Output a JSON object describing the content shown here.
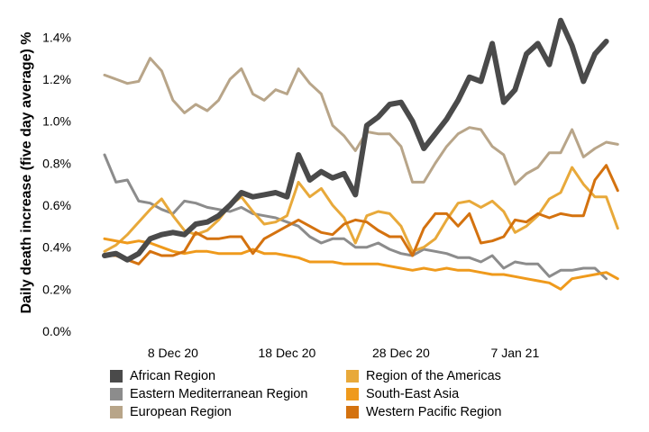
{
  "chart_data": {
    "type": "line",
    "title": "",
    "xlabel": "",
    "ylabel": "Daily death increase (five day average) %",
    "ylim": [
      0,
      1.5
    ],
    "y_ticks": [
      0.0,
      0.2,
      0.4,
      0.6,
      0.8,
      1.0,
      1.2,
      1.4
    ],
    "y_tick_labels": [
      "0.0%",
      "0.2%",
      "0.4%",
      "0.6%",
      "0.8%",
      "1.0%",
      "1.2%",
      "1.4%"
    ],
    "x_tick_labels": [
      {
        "label": "8 Dec 20",
        "day": 6
      },
      {
        "label": "18 Dec 20",
        "day": 16
      },
      {
        "label": "28 Dec 20",
        "day": 26
      },
      {
        "label": "7 Jan 21",
        "day": 36
      }
    ],
    "x_range": [
      0,
      46
    ],
    "grid": false,
    "legend_position": "bottom",
    "series": [
      {
        "name": "African Region",
        "color": "#4a4a4a",
        "width": 6,
        "values": [
          0.36,
          0.37,
          0.34,
          0.37,
          0.44,
          0.46,
          0.47,
          0.46,
          0.51,
          0.52,
          0.55,
          0.6,
          0.66,
          0.64,
          0.65,
          0.66,
          0.64,
          0.84,
          0.72,
          0.76,
          0.73,
          0.75,
          0.65,
          0.98,
          1.02,
          1.08,
          1.09,
          1.0,
          0.87,
          0.94,
          1.01,
          1.1,
          1.21,
          1.19,
          1.37,
          1.09,
          1.15,
          1.32,
          1.37,
          1.27,
          1.48,
          1.36,
          1.19,
          1.32,
          1.38
        ]
      },
      {
        "name": "Eastern Mediterranean Region",
        "color": "#8c8c8c",
        "width": 3,
        "values": [
          0.84,
          0.71,
          0.72,
          0.62,
          0.61,
          0.58,
          0.56,
          0.62,
          0.61,
          0.59,
          0.58,
          0.57,
          0.59,
          0.56,
          0.55,
          0.54,
          0.52,
          0.5,
          0.45,
          0.42,
          0.44,
          0.44,
          0.4,
          0.4,
          0.42,
          0.39,
          0.37,
          0.36,
          0.39,
          0.38,
          0.37,
          0.35,
          0.35,
          0.33,
          0.36,
          0.3,
          0.33,
          0.32,
          0.32,
          0.26,
          0.29,
          0.29,
          0.3,
          0.3,
          0.25
        ]
      },
      {
        "name": "European Region",
        "color": "#b8a589",
        "width": 3,
        "values": [
          1.22,
          1.2,
          1.18,
          1.19,
          1.3,
          1.24,
          1.1,
          1.04,
          1.08,
          1.05,
          1.1,
          1.2,
          1.25,
          1.13,
          1.1,
          1.15,
          1.13,
          1.25,
          1.18,
          1.13,
          0.98,
          0.93,
          0.86,
          0.95,
          0.94,
          0.94,
          0.88,
          0.71,
          0.71,
          0.8,
          0.88,
          0.94,
          0.97,
          0.96,
          0.88,
          0.84,
          0.7,
          0.75,
          0.78,
          0.85,
          0.85,
          0.96,
          0.83,
          0.87,
          0.9,
          0.89
        ]
      },
      {
        "name": "Region of the Americas",
        "color": "#e8a93a",
        "width": 3,
        "values": [
          0.38,
          0.41,
          0.46,
          0.52,
          0.58,
          0.63,
          0.55,
          0.48,
          0.46,
          0.48,
          0.53,
          0.6,
          0.64,
          0.57,
          0.51,
          0.52,
          0.55,
          0.71,
          0.64,
          0.68,
          0.6,
          0.54,
          0.42,
          0.55,
          0.57,
          0.56,
          0.5,
          0.38,
          0.4,
          0.44,
          0.53,
          0.61,
          0.62,
          0.59,
          0.62,
          0.57,
          0.47,
          0.5,
          0.55,
          0.63,
          0.66,
          0.78,
          0.7,
          0.64,
          0.64,
          0.49
        ]
      },
      {
        "name": "South-East Asia",
        "color": "#ef9a1c",
        "width": 3,
        "values": [
          0.44,
          0.43,
          0.42,
          0.43,
          0.42,
          0.4,
          0.38,
          0.37,
          0.38,
          0.38,
          0.37,
          0.37,
          0.37,
          0.39,
          0.37,
          0.37,
          0.36,
          0.35,
          0.33,
          0.33,
          0.33,
          0.32,
          0.32,
          0.32,
          0.32,
          0.31,
          0.3,
          0.29,
          0.3,
          0.29,
          0.3,
          0.29,
          0.29,
          0.28,
          0.27,
          0.27,
          0.26,
          0.25,
          0.24,
          0.23,
          0.2,
          0.25,
          0.26,
          0.27,
          0.28,
          0.25
        ]
      },
      {
        "name": "Western Pacific Region",
        "color": "#d4720f",
        "width": 3,
        "values": [
          0.36,
          0.36,
          0.34,
          0.32,
          0.38,
          0.36,
          0.36,
          0.38,
          0.47,
          0.44,
          0.44,
          0.45,
          0.45,
          0.37,
          0.44,
          0.47,
          0.5,
          0.53,
          0.5,
          0.47,
          0.46,
          0.51,
          0.53,
          0.52,
          0.48,
          0.45,
          0.45,
          0.36,
          0.49,
          0.56,
          0.56,
          0.5,
          0.56,
          0.42,
          0.43,
          0.45,
          0.53,
          0.52,
          0.56,
          0.54,
          0.56,
          0.55,
          0.55,
          0.72,
          0.79,
          0.67
        ]
      }
    ]
  }
}
